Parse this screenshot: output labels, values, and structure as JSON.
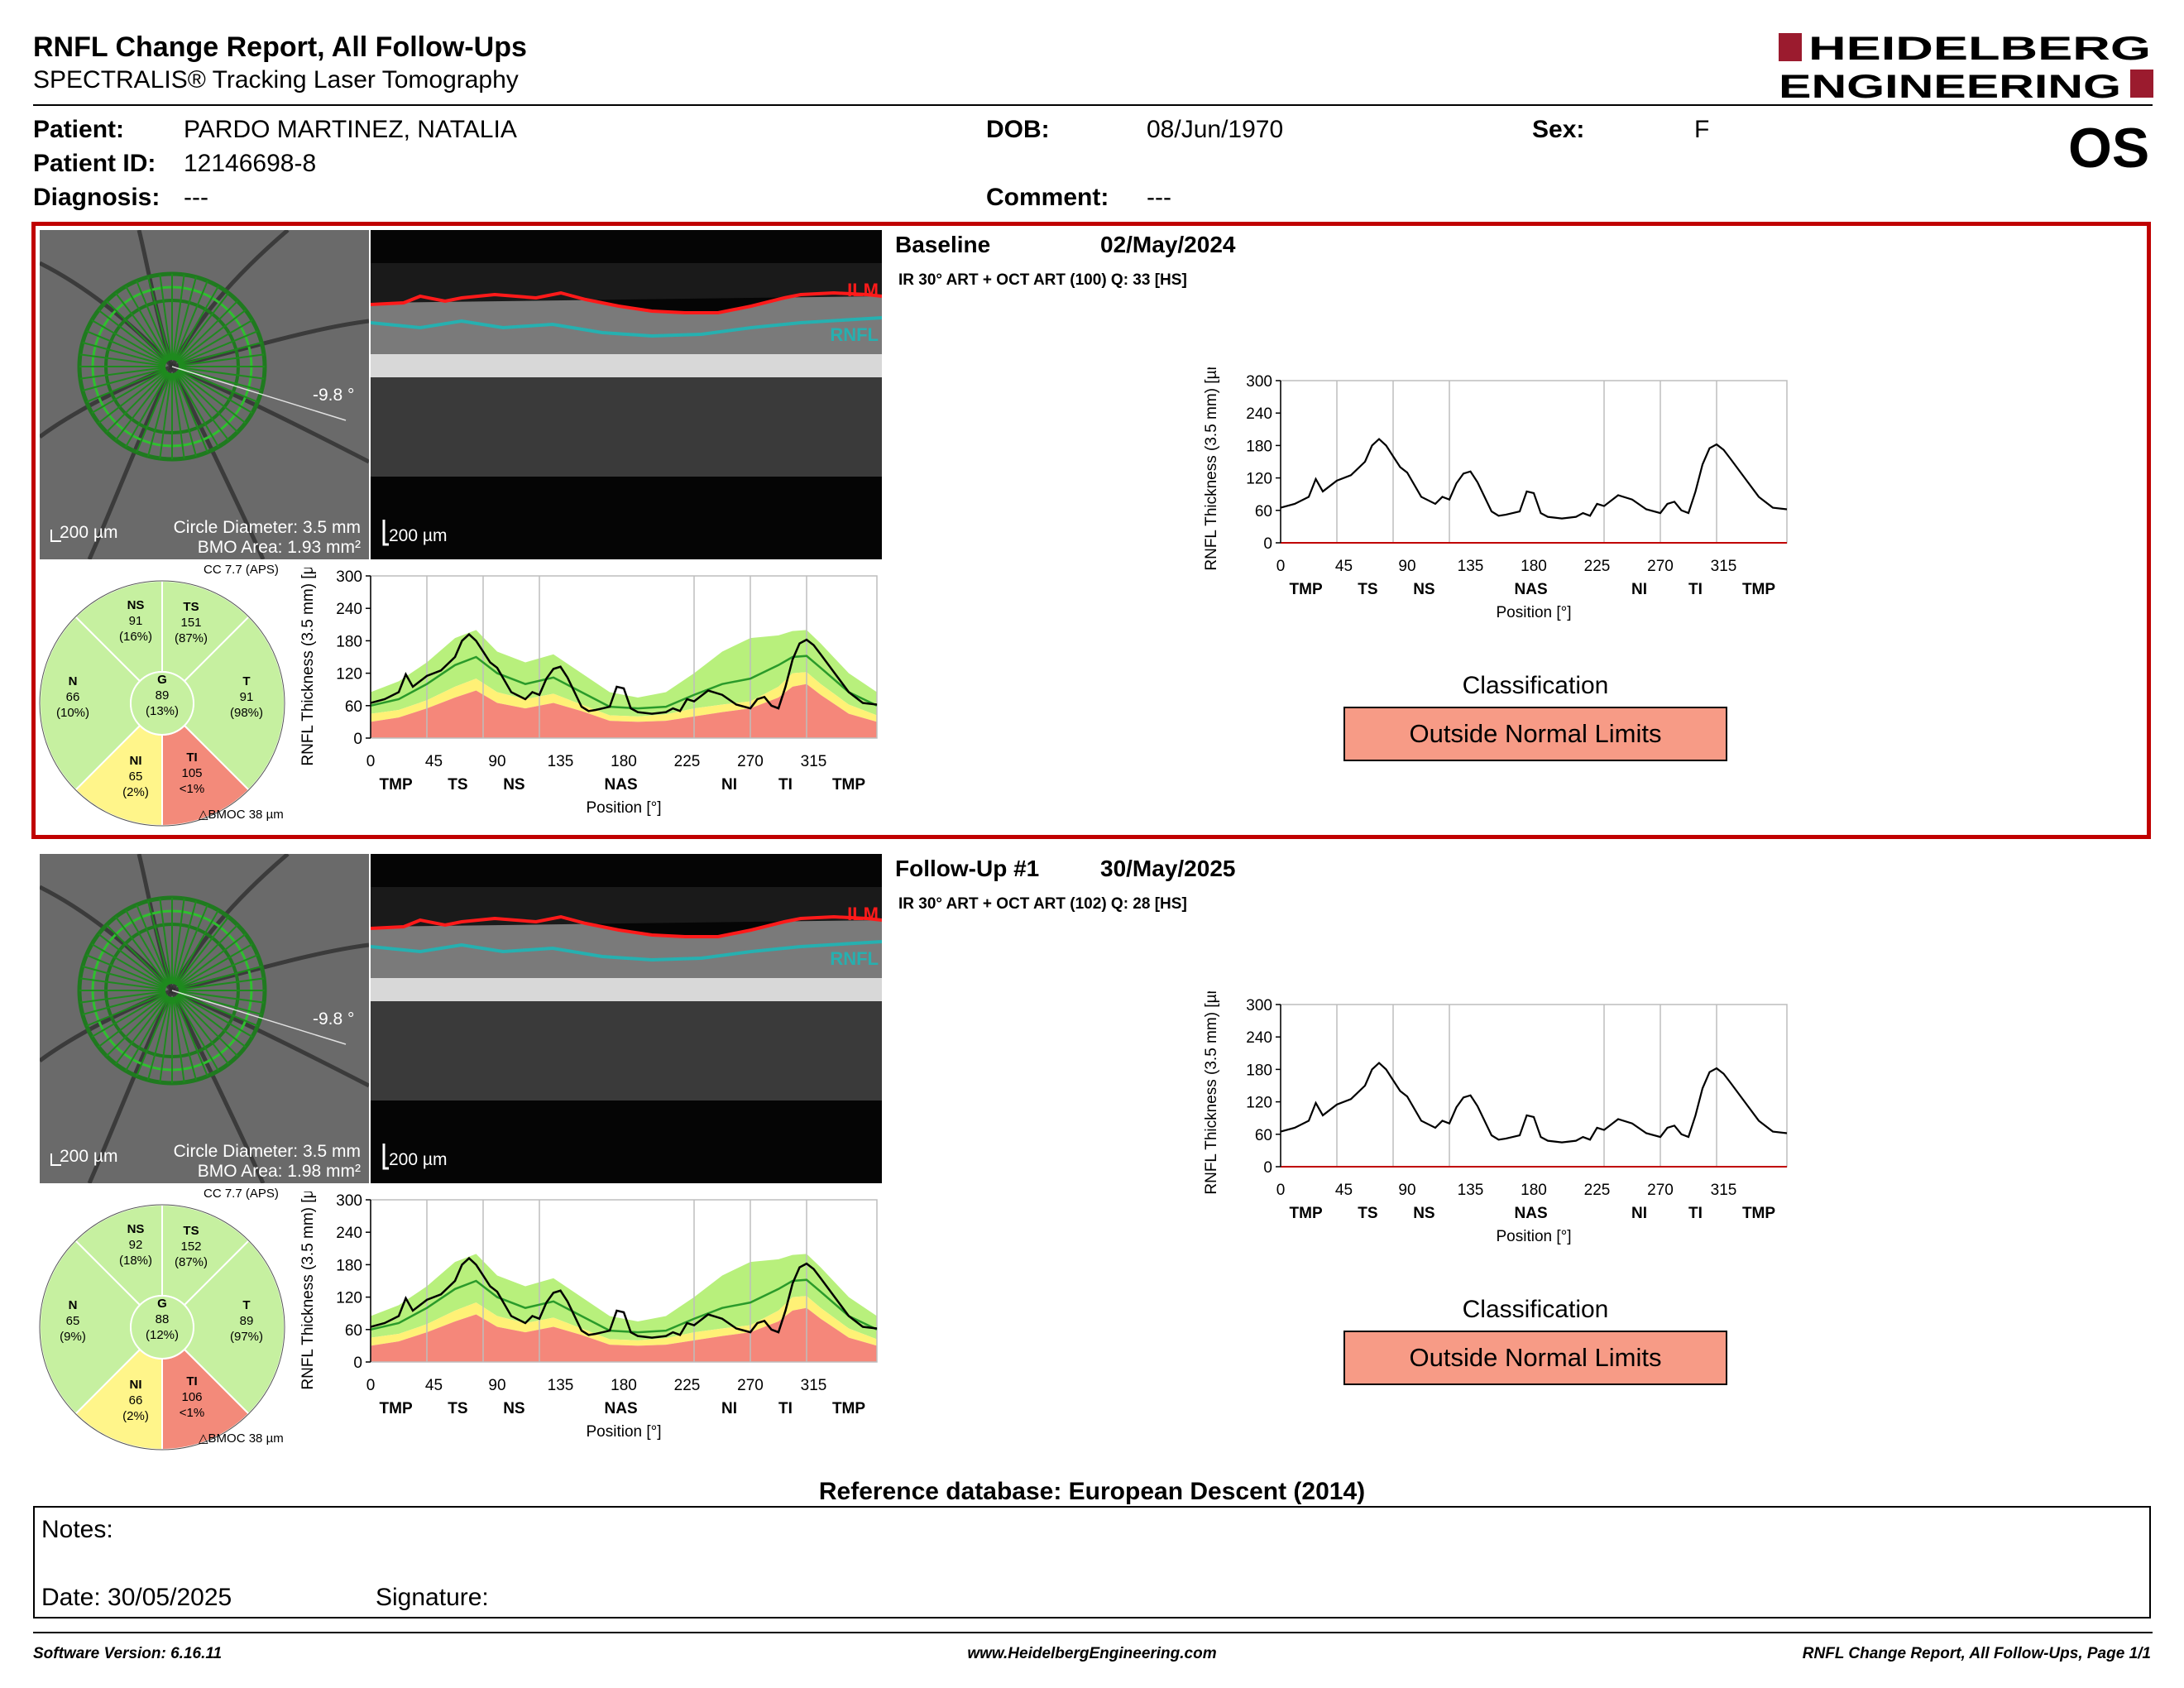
{
  "header": {
    "title": "RNFL Change Report, All Follow-Ups",
    "subtitle": "SPECTRALIS® Tracking Laser Tomography",
    "logo_line1": "HEIDELBERG",
    "logo_line2": "ENGINEERING"
  },
  "patient": {
    "patient_label": "Patient:",
    "patient_name": "PARDO MARTINEZ, NATALIA",
    "dob_label": "DOB:",
    "dob": "08/Jun/1970",
    "sex_label": "Sex:",
    "sex": "F",
    "id_label": "Patient ID:",
    "id": "12146698-8",
    "diagnosis_label": "Diagnosis:",
    "diagnosis": "---",
    "comment_label": "Comment:",
    "comment": "---",
    "eye": "OS"
  },
  "visits": [
    {
      "name": "Baseline",
      "date": "02/May/2024",
      "scan_info": "IR 30° ART + OCT ART (100) Q: 33 [HS]",
      "angle": "-9.8 °",
      "scale_fundus": "200 µm",
      "circle_diameter": "Circle Diameter: 3.5 mm",
      "bmo_area": "BMO Area: 1.93 mm²",
      "scale_bscan": "200 µm",
      "ilm_label": "ILM",
      "rnfl_label": "RNFL",
      "cc": "CC 7.7 (APS)",
      "bmoc": "BMOC 38 µm",
      "sectors": {
        "NS": {
          "label": "NS",
          "value": "91",
          "pct": "(16%)"
        },
        "TS": {
          "label": "TS",
          "value": "151",
          "pct": "(87%)"
        },
        "N": {
          "label": "N",
          "value": "66",
          "pct": "(10%)"
        },
        "G": {
          "label": "G",
          "value": "89",
          "pct": "(13%)"
        },
        "T": {
          "label": "T",
          "value": "91",
          "pct": "(98%)"
        },
        "NI": {
          "label": "NI",
          "value": "65",
          "pct": "(2%)"
        },
        "TI": {
          "label": "TI",
          "value": "105",
          "pct": "<1%"
        }
      },
      "classification_title": "Classification",
      "classification": "Outside Normal Limits"
    },
    {
      "name": "Follow-Up #1",
      "date": "30/May/2025",
      "scan_info": "IR 30° ART + OCT ART (102) Q: 28 [HS]",
      "angle": "-9.8 °",
      "scale_fundus": "200 µm",
      "circle_diameter": "Circle Diameter: 3.5 mm",
      "bmo_area": "BMO Area: 1.98 mm²",
      "scale_bscan": "200 µm",
      "ilm_label": "ILM",
      "rnfl_label": "RNFL",
      "cc": "CC 7.7 (APS)",
      "bmoc": "BMOC 38 µm",
      "sectors": {
        "NS": {
          "label": "NS",
          "value": "92",
          "pct": "(18%)"
        },
        "TS": {
          "label": "TS",
          "value": "152",
          "pct": "(87%)"
        },
        "N": {
          "label": "N",
          "value": "65",
          "pct": "(9%)"
        },
        "G": {
          "label": "G",
          "value": "88",
          "pct": "(12%)"
        },
        "T": {
          "label": "T",
          "value": "89",
          "pct": "(97%)"
        },
        "NI": {
          "label": "NI",
          "value": "66",
          "pct": "(2%)"
        },
        "TI": {
          "label": "TI",
          "value": "106",
          "pct": "<1%"
        }
      },
      "classification_title": "Classification",
      "classification": "Outside Normal Limits"
    }
  ],
  "sector_colors": {
    "green": "#c6f0a0",
    "yellow": "#fff58a",
    "red": "#f38a7a"
  },
  "chart_data": {
    "type": "line",
    "xlabel": "Position [°]",
    "ylabel": "RNFL Thickness (3.5 mm) [µm]",
    "ylim": [
      0,
      300
    ],
    "xlim": [
      0,
      360
    ],
    "xticks": [
      0,
      45,
      90,
      135,
      180,
      225,
      270,
      315
    ],
    "yticks": [
      0,
      60,
      120,
      180,
      240,
      300
    ],
    "region_labels": [
      {
        "label": "TMP",
        "pos": 18
      },
      {
        "label": "TS",
        "pos": 62
      },
      {
        "label": "NS",
        "pos": 102
      },
      {
        "label": "NAS",
        "pos": 178
      },
      {
        "label": "NI",
        "pos": 255
      },
      {
        "label": "TI",
        "pos": 295
      },
      {
        "label": "TMP",
        "pos": 340
      }
    ],
    "grid_lines": [
      40,
      80,
      120,
      230,
      270,
      310
    ],
    "series": [
      {
        "x": [
          0,
          10,
          20,
          25,
          30,
          40,
          50,
          60,
          65,
          70,
          75,
          80,
          85,
          90,
          100,
          110,
          115,
          120,
          125,
          130,
          135,
          140,
          150,
          155,
          160,
          165,
          170,
          175,
          180,
          185,
          190,
          200,
          210,
          215,
          220,
          225,
          230,
          240,
          250,
          260,
          270,
          275,
          280,
          285,
          290,
          295,
          300,
          305,
          310,
          315,
          320,
          330,
          340,
          350,
          360
        ],
        "y": [
          65,
          72,
          85,
          118,
          95,
          115,
          125,
          150,
          180,
          192,
          180,
          160,
          140,
          130,
          85,
          72,
          85,
          80,
          110,
          128,
          132,
          112,
          58,
          50,
          52,
          55,
          58,
          95,
          92,
          55,
          48,
          45,
          48,
          55,
          50,
          72,
          68,
          88,
          80,
          62,
          55,
          72,
          76,
          60,
          55,
          95,
          145,
          175,
          182,
          172,
          155,
          120,
          85,
          65,
          62
        ]
      }
    ],
    "normal_bands": {
      "x": [
        0,
        20,
        40,
        60,
        75,
        90,
        110,
        130,
        150,
        170,
        190,
        210,
        230,
        250,
        270,
        290,
        300,
        310,
        320,
        340,
        360
      ],
      "red_top": [
        30,
        38,
        55,
        75,
        88,
        65,
        55,
        65,
        50,
        32,
        30,
        32,
        40,
        48,
        55,
        75,
        95,
        100,
        80,
        45,
        30
      ],
      "yellow_top": [
        45,
        52,
        70,
        95,
        110,
        85,
        72,
        82,
        62,
        42,
        40,
        44,
        55,
        62,
        68,
        95,
        120,
        122,
        100,
        62,
        42
      ],
      "green_top": [
        85,
        105,
        140,
        185,
        200,
        160,
        140,
        155,
        120,
        85,
        75,
        85,
        120,
        160,
        185,
        190,
        198,
        200,
        175,
        120,
        85
      ],
      "mean": [
        60,
        72,
        100,
        135,
        150,
        120,
        100,
        112,
        85,
        58,
        55,
        58,
        80,
        100,
        110,
        135,
        150,
        152,
        130,
        85,
        60
      ]
    }
  },
  "reference_db": "Reference database: European Descent (2014)",
  "notes": {
    "notes_label": "Notes:",
    "date_label": "Date: 30/05/2025",
    "signature_label": "Signature:"
  },
  "footer": {
    "software": "Software Version: 6.16.11",
    "website": "www.HeidelbergEngineering.com",
    "page": "RNFL Change Report, All Follow-Ups, Page 1/1"
  }
}
